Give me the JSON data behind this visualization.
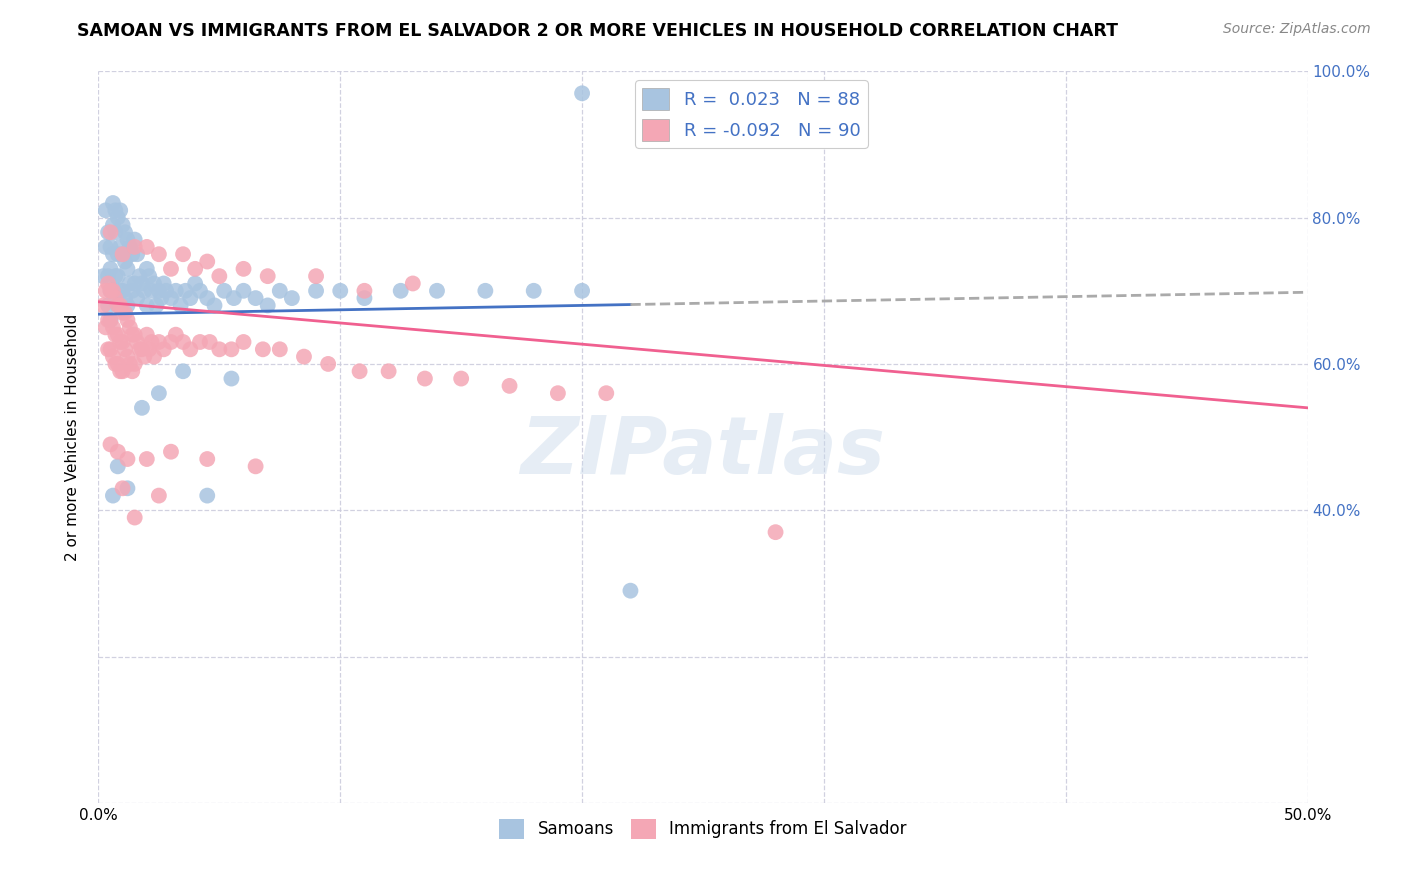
{
  "title": "SAMOAN VS IMMIGRANTS FROM EL SALVADOR 2 OR MORE VEHICLES IN HOUSEHOLD CORRELATION CHART",
  "source": "Source: ZipAtlas.com",
  "ylabel": "2 or more Vehicles in Household",
  "x_min": 0.0,
  "x_max": 0.5,
  "y_min": 0.0,
  "y_max": 1.0,
  "samoans_R": 0.023,
  "samoans_N": 88,
  "elsalvador_R": -0.092,
  "elsalvador_N": 90,
  "samoans_color": "#a8c4e0",
  "elsalvador_color": "#f4a7b5",
  "samoans_line_color": "#4472c4",
  "elsalvador_line_color": "#f06090",
  "background_color": "#ffffff",
  "grid_color": "#ccccdd",
  "legend_text_color": "#4472c4",
  "watermark": "ZIPatlas",
  "samoans_x": [
    0.002,
    0.003,
    0.003,
    0.004,
    0.004,
    0.004,
    0.005,
    0.005,
    0.005,
    0.005,
    0.006,
    0.006,
    0.006,
    0.006,
    0.007,
    0.007,
    0.007,
    0.008,
    0.008,
    0.008,
    0.008,
    0.009,
    0.009,
    0.009,
    0.01,
    0.01,
    0.01,
    0.011,
    0.011,
    0.011,
    0.012,
    0.012,
    0.012,
    0.013,
    0.013,
    0.014,
    0.014,
    0.015,
    0.015,
    0.016,
    0.016,
    0.017,
    0.018,
    0.019,
    0.02,
    0.02,
    0.021,
    0.022,
    0.023,
    0.024,
    0.025,
    0.026,
    0.027,
    0.028,
    0.03,
    0.032,
    0.034,
    0.036,
    0.038,
    0.04,
    0.042,
    0.045,
    0.048,
    0.052,
    0.056,
    0.06,
    0.065,
    0.07,
    0.075,
    0.08,
    0.09,
    0.1,
    0.11,
    0.125,
    0.14,
    0.16,
    0.18,
    0.2,
    0.008,
    0.012,
    0.018,
    0.025,
    0.006,
    0.035,
    0.045,
    0.055,
    0.2,
    0.22
  ],
  "samoans_y": [
    0.72,
    0.76,
    0.81,
    0.78,
    0.72,
    0.68,
    0.76,
    0.73,
    0.7,
    0.66,
    0.82,
    0.79,
    0.75,
    0.7,
    0.81,
    0.78,
    0.72,
    0.8,
    0.75,
    0.72,
    0.68,
    0.81,
    0.76,
    0.7,
    0.79,
    0.75,
    0.7,
    0.78,
    0.74,
    0.69,
    0.77,
    0.73,
    0.68,
    0.76,
    0.71,
    0.75,
    0.7,
    0.77,
    0.71,
    0.75,
    0.69,
    0.72,
    0.71,
    0.7,
    0.73,
    0.68,
    0.72,
    0.7,
    0.71,
    0.68,
    0.7,
    0.69,
    0.71,
    0.7,
    0.69,
    0.7,
    0.68,
    0.7,
    0.69,
    0.71,
    0.7,
    0.69,
    0.68,
    0.7,
    0.69,
    0.7,
    0.69,
    0.68,
    0.7,
    0.69,
    0.7,
    0.7,
    0.69,
    0.7,
    0.7,
    0.7,
    0.7,
    0.7,
    0.46,
    0.43,
    0.54,
    0.56,
    0.42,
    0.59,
    0.42,
    0.58,
    0.97,
    0.29
  ],
  "elsalvador_x": [
    0.002,
    0.003,
    0.003,
    0.004,
    0.004,
    0.004,
    0.005,
    0.005,
    0.005,
    0.006,
    0.006,
    0.006,
    0.007,
    0.007,
    0.007,
    0.008,
    0.008,
    0.008,
    0.009,
    0.009,
    0.009,
    0.01,
    0.01,
    0.01,
    0.011,
    0.011,
    0.012,
    0.012,
    0.013,
    0.013,
    0.014,
    0.014,
    0.015,
    0.015,
    0.016,
    0.017,
    0.018,
    0.019,
    0.02,
    0.021,
    0.022,
    0.023,
    0.025,
    0.027,
    0.03,
    0.032,
    0.035,
    0.038,
    0.042,
    0.046,
    0.05,
    0.055,
    0.06,
    0.068,
    0.075,
    0.085,
    0.095,
    0.108,
    0.12,
    0.135,
    0.15,
    0.17,
    0.19,
    0.21,
    0.005,
    0.01,
    0.015,
    0.02,
    0.025,
    0.03,
    0.035,
    0.04,
    0.045,
    0.05,
    0.06,
    0.07,
    0.09,
    0.11,
    0.13,
    0.005,
    0.008,
    0.012,
    0.02,
    0.03,
    0.045,
    0.065,
    0.28,
    0.01,
    0.015,
    0.025
  ],
  "elsalvador_y": [
    0.68,
    0.7,
    0.65,
    0.71,
    0.66,
    0.62,
    0.7,
    0.66,
    0.62,
    0.7,
    0.65,
    0.61,
    0.69,
    0.64,
    0.6,
    0.68,
    0.64,
    0.6,
    0.68,
    0.63,
    0.59,
    0.67,
    0.63,
    0.59,
    0.67,
    0.62,
    0.66,
    0.61,
    0.65,
    0.6,
    0.64,
    0.59,
    0.64,
    0.6,
    0.63,
    0.62,
    0.62,
    0.61,
    0.64,
    0.62,
    0.63,
    0.61,
    0.63,
    0.62,
    0.63,
    0.64,
    0.63,
    0.62,
    0.63,
    0.63,
    0.62,
    0.62,
    0.63,
    0.62,
    0.62,
    0.61,
    0.6,
    0.59,
    0.59,
    0.58,
    0.58,
    0.57,
    0.56,
    0.56,
    0.78,
    0.75,
    0.76,
    0.76,
    0.75,
    0.73,
    0.75,
    0.73,
    0.74,
    0.72,
    0.73,
    0.72,
    0.72,
    0.7,
    0.71,
    0.49,
    0.48,
    0.47,
    0.47,
    0.48,
    0.47,
    0.46,
    0.37,
    0.43,
    0.39,
    0.42
  ]
}
